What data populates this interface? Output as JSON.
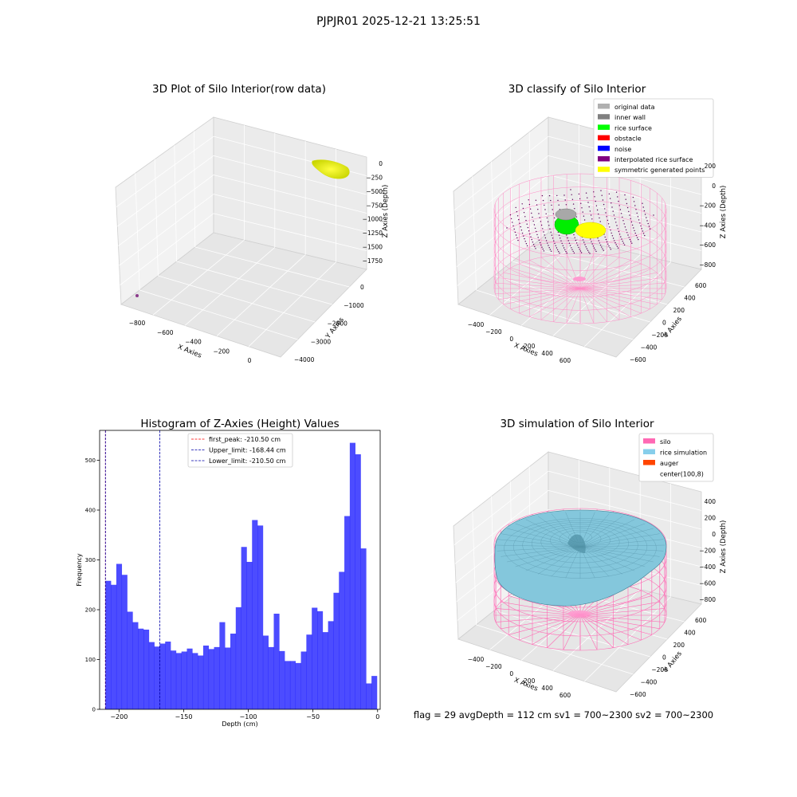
{
  "suptitle": "PJPJR01 2025-12-21 13:25:51",
  "status_line": "flag = 29  avgDepth = 112 cm  sv1 = 700~2300  sv2 = 700~2300",
  "colors": {
    "yellow_points": "#ffff00",
    "purple_dot": "#8b3a8b",
    "silo_wire": "#ff69b4",
    "rice_sim": "#7ec8e3",
    "hist_bar": "#0000ff",
    "peak_line": "#ff0000",
    "limit_line": "#0000aa"
  },
  "chart_data": [
    {
      "type": "scatter",
      "title": "3D Plot of Silo Interior(row data)",
      "projection": "3d",
      "xlabel": "X Axies",
      "ylabel": "Y Axies",
      "zlabel": "Z Axies (Depth)",
      "x_ticks": [
        "−800",
        "−600",
        "−400",
        "−200",
        "0"
      ],
      "y_ticks": [
        "0",
        "−1000",
        "−2000",
        "−3000",
        "−4000"
      ],
      "z_ticks": [
        "0",
        "−250",
        "−500",
        "−750",
        "−1000",
        "−1250",
        "−1500",
        "−1750"
      ],
      "clusters": [
        {
          "name": "point cloud",
          "color": "yellow",
          "x": [
            -100,
            0
          ],
          "y": [
            -200,
            200
          ],
          "z": [
            -250,
            0
          ]
        },
        {
          "name": "single point",
          "color": "purple",
          "x": -830,
          "y": -3200,
          "z": -1800
        }
      ]
    },
    {
      "type": "scatter",
      "title": "3D classify of Silo Interior",
      "projection": "3d",
      "xlabel": "X Axies",
      "ylabel": "Y Axies",
      "zlabel": "Z Axies (Depth)",
      "x_ticks": [
        "−400",
        "−200",
        "0",
        "200",
        "400",
        "600"
      ],
      "y_ticks": [
        "600",
        "400",
        "200",
        "0",
        "−200",
        "−400",
        "−600"
      ],
      "z_ticks": [
        "200",
        "0",
        "−200",
        "−400",
        "−600",
        "−800"
      ],
      "legend": [
        {
          "label": "original data",
          "color": "#b0b0b0"
        },
        {
          "label": "inner wall",
          "color": "#808080"
        },
        {
          "label": "rice surface",
          "color": "#00ff00"
        },
        {
          "label": "obstacle",
          "color": "#ff0000"
        },
        {
          "label": "noise",
          "color": "#0000ff"
        },
        {
          "label": "interpolated rice surface",
          "color": "#800080"
        },
        {
          "label": "symmetric generated points",
          "color": "#ffff00"
        }
      ],
      "legend_loc": "upper right"
    },
    {
      "type": "bar",
      "title": "Histogram of Z-Axies (Height) Values",
      "xlabel": "Depth (cm)",
      "ylabel": "Frequency",
      "xlim": [
        -215,
        2
      ],
      "ylim": [
        0,
        560
      ],
      "x_ticks": [
        -200,
        -150,
        -100,
        -50,
        0
      ],
      "y_ticks": [
        0,
        100,
        200,
        300,
        400,
        500
      ],
      "bin_start": -210.5,
      "bin_width": 4.2,
      "values": [
        258,
        250,
        292,
        270,
        196,
        175,
        162,
        160,
        135,
        126,
        132,
        136,
        118,
        113,
        116,
        122,
        113,
        108,
        128,
        121,
        125,
        175,
        124,
        152,
        205,
        326,
        296,
        380,
        369,
        148,
        125,
        192,
        117,
        97,
        97,
        93,
        116,
        150,
        204,
        197,
        155,
        177,
        234,
        276,
        388,
        535,
        512,
        323,
        52,
        67
      ],
      "vlines": [
        {
          "label": "first_peak: -210.50 cm",
          "x": -210.5,
          "color": "#ff0000"
        },
        {
          "label": "Upper_limit: -168.44 cm",
          "x": -168.44,
          "color": "#0000aa"
        },
        {
          "label": "Lower_limit: -210.50 cm",
          "x": -210.5,
          "color": "#0000aa"
        }
      ],
      "legend_loc": "top"
    },
    {
      "type": "scatter",
      "title": "3D simulation of Silo Interior",
      "projection": "3d",
      "xlabel": "X Axies",
      "ylabel": "Y Axies",
      "zlabel": "Z Axies (Depth)",
      "x_ticks": [
        "−400",
        "−200",
        "0",
        "200",
        "400",
        "600"
      ],
      "y_ticks": [
        "600",
        "400",
        "200",
        "0",
        "−200",
        "−400",
        "−600"
      ],
      "z_ticks": [
        "400",
        "200",
        "0",
        "−200",
        "−400",
        "−600",
        "−800"
      ],
      "legend": [
        {
          "label": "silo",
          "color": "#ff69b4"
        },
        {
          "label": "rice simulation",
          "color": "#87ceeb"
        },
        {
          "label": "auger",
          "color": "#ff4500"
        },
        {
          "label": "center(100,8)",
          "color": "#ffffff"
        }
      ],
      "legend_loc": "upper right"
    }
  ]
}
